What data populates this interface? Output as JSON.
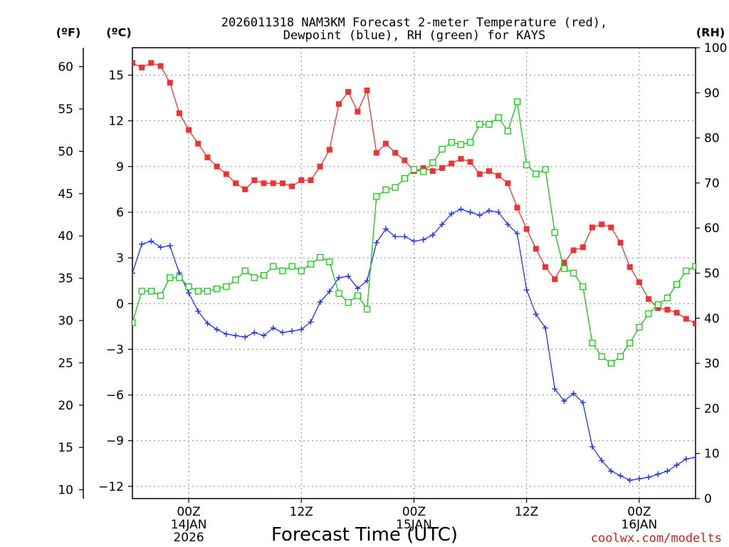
{
  "colors": {
    "temperature": "#ee3333",
    "dewpoint": "#2233ee",
    "rh": "#11cc11",
    "watermark": "#cc2222",
    "grid": "#888888",
    "axis": "#000000"
  },
  "chart_data": {
    "type": "line",
    "title_line1": "2026011318 NAM3KM Forecast 2-meter Temperature (red),",
    "title_line2": "Dewpoint (blue), RH (green) for KAYS",
    "xlabel": "Forecast Time (UTC)",
    "watermark": "coolwx.com/modelts",
    "left_unit_f": "(ºF)",
    "left_unit_c": "(ºC)",
    "right_unit": "(RH)",
    "x_unit": "hours from 2026-01-13 18Z",
    "xlim": [
      0,
      60
    ],
    "ylim_c": [
      -12.8,
      16.8
    ],
    "ylim_rh": [
      0,
      100
    ],
    "celsius_ticks": [
      15,
      12,
      9,
      6,
      3,
      0,
      -3,
      -6,
      -9,
      -12
    ],
    "celsius_tick_labels": [
      "15",
      "12",
      "9",
      "6",
      "3",
      "0",
      "−3",
      "−6",
      "−9",
      "−12"
    ],
    "fahrenheit_ticks": [
      60,
      55,
      50,
      45,
      40,
      35,
      30,
      25,
      20,
      15,
      10
    ],
    "fahrenheit_tick_labels": [
      "60",
      "55",
      "50",
      "45",
      "40",
      "35",
      "30",
      "25",
      "20",
      "15",
      "10"
    ],
    "rh_ticks": [
      100,
      90,
      80,
      70,
      60,
      50,
      40,
      30,
      20,
      10,
      0
    ],
    "rh_tick_labels": [
      "100",
      "90",
      "80",
      "70",
      "60",
      "50",
      "40",
      "30",
      "20",
      "10",
      "0"
    ],
    "x_ticks": [
      {
        "x": 6,
        "label": "00Z",
        "date": "14JAN",
        "year": "2026"
      },
      {
        "x": 18,
        "label": "12Z",
        "date": "",
        "year": ""
      },
      {
        "x": 30,
        "label": "00Z",
        "date": "15JAN",
        "year": ""
      },
      {
        "x": 42,
        "label": "12Z",
        "date": "",
        "year": ""
      },
      {
        "x": 54,
        "label": "00Z",
        "date": "16JAN",
        "year": ""
      }
    ],
    "series": [
      {
        "name": "Temperature",
        "unit": "°C",
        "axis": "celsius",
        "marker": "filled-square",
        "x": [
          0,
          1,
          2,
          3,
          4,
          5,
          6,
          7,
          8,
          9,
          10,
          11,
          12,
          13,
          14,
          15,
          16,
          17,
          18,
          19,
          20,
          21,
          22,
          23,
          24,
          25,
          26,
          27,
          28,
          29,
          30,
          31,
          32,
          33,
          34,
          35,
          36,
          37,
          38,
          39,
          40,
          41,
          42,
          43,
          44,
          45,
          46,
          47,
          48,
          49,
          50,
          51,
          52,
          53,
          54,
          55,
          56,
          57,
          58,
          59,
          60
        ],
        "values": [
          15.8,
          15.5,
          15.8,
          15.6,
          14.5,
          12.5,
          11.4,
          10.5,
          9.6,
          9.0,
          8.5,
          7.9,
          7.5,
          8.1,
          7.9,
          7.9,
          7.9,
          7.7,
          8.1,
          8.1,
          9.0,
          10.1,
          13.1,
          13.9,
          12.6,
          14.0,
          9.9,
          10.5,
          9.9,
          9.4,
          8.7,
          8.9,
          8.7,
          8.9,
          9.2,
          9.5,
          9.3,
          8.5,
          8.7,
          8.4,
          7.9,
          6.3,
          4.9,
          3.6,
          2.4,
          1.6,
          2.7,
          3.5,
          3.7,
          5.0,
          5.2,
          5.0,
          4.0,
          2.4,
          1.4,
          0.3,
          -0.3,
          -0.4,
          -0.6,
          -1.0,
          -1.3
        ]
      },
      {
        "name": "Dewpoint",
        "unit": "°C",
        "axis": "celsius",
        "marker": "plus",
        "x": [
          0,
          1,
          2,
          3,
          4,
          5,
          6,
          7,
          8,
          9,
          10,
          11,
          12,
          13,
          14,
          15,
          16,
          17,
          18,
          19,
          20,
          21,
          22,
          23,
          24,
          25,
          26,
          27,
          28,
          29,
          30,
          31,
          32,
          33,
          34,
          35,
          36,
          37,
          38,
          39,
          40,
          41,
          42,
          43,
          44,
          45,
          46,
          47,
          48,
          49,
          50,
          51,
          52,
          53,
          54,
          55,
          56,
          57,
          58,
          59,
          60
        ],
        "values": [
          2.0,
          3.9,
          4.1,
          3.7,
          3.8,
          2.0,
          0.7,
          -0.5,
          -1.3,
          -1.7,
          -2.0,
          -2.1,
          -2.2,
          -1.9,
          -2.1,
          -1.6,
          -1.9,
          -1.8,
          -1.7,
          -1.2,
          0.1,
          0.8,
          1.7,
          1.8,
          1.0,
          1.5,
          4.0,
          4.9,
          4.4,
          4.4,
          4.1,
          4.2,
          4.5,
          5.2,
          5.9,
          6.2,
          6.0,
          5.8,
          6.1,
          6.0,
          5.2,
          4.6,
          0.9,
          -0.7,
          -1.6,
          -5.6,
          -6.4,
          -5.9,
          -6.5,
          -9.4,
          -10.3,
          -11.0,
          -11.3,
          -11.6,
          -11.5,
          -11.4,
          -11.2,
          -11.0,
          -10.6,
          -10.2,
          -10.1
        ]
      },
      {
        "name": "RH",
        "unit": "%",
        "axis": "rh",
        "marker": "open-square",
        "x": [
          0,
          1,
          2,
          3,
          4,
          5,
          6,
          7,
          8,
          9,
          10,
          11,
          12,
          13,
          14,
          15,
          16,
          17,
          18,
          19,
          20,
          21,
          22,
          23,
          24,
          25,
          26,
          27,
          28,
          29,
          30,
          31,
          32,
          33,
          34,
          35,
          36,
          37,
          38,
          39,
          40,
          41,
          42,
          43,
          44,
          45,
          46,
          47,
          48,
          49,
          50,
          51,
          52,
          53,
          54,
          55,
          56,
          57,
          58,
          59,
          60
        ],
        "values": [
          39,
          46,
          46,
          45,
          49,
          49,
          47,
          46,
          46,
          46.5,
          47,
          48.5,
          50.5,
          49,
          49.5,
          51.5,
          50.5,
          51.5,
          50.5,
          52,
          53.5,
          52.5,
          45.5,
          43.5,
          45,
          42,
          67,
          68.5,
          69,
          71,
          73,
          72.5,
          74.5,
          77.5,
          79,
          78.5,
          79,
          83,
          83,
          84.5,
          81.5,
          88,
          74,
          72,
          73,
          59,
          51,
          50,
          47,
          34.5,
          31.5,
          30,
          31.5,
          34.5,
          38,
          41,
          43,
          44.5,
          47.5,
          50.5,
          51.5
        ]
      }
    ]
  }
}
